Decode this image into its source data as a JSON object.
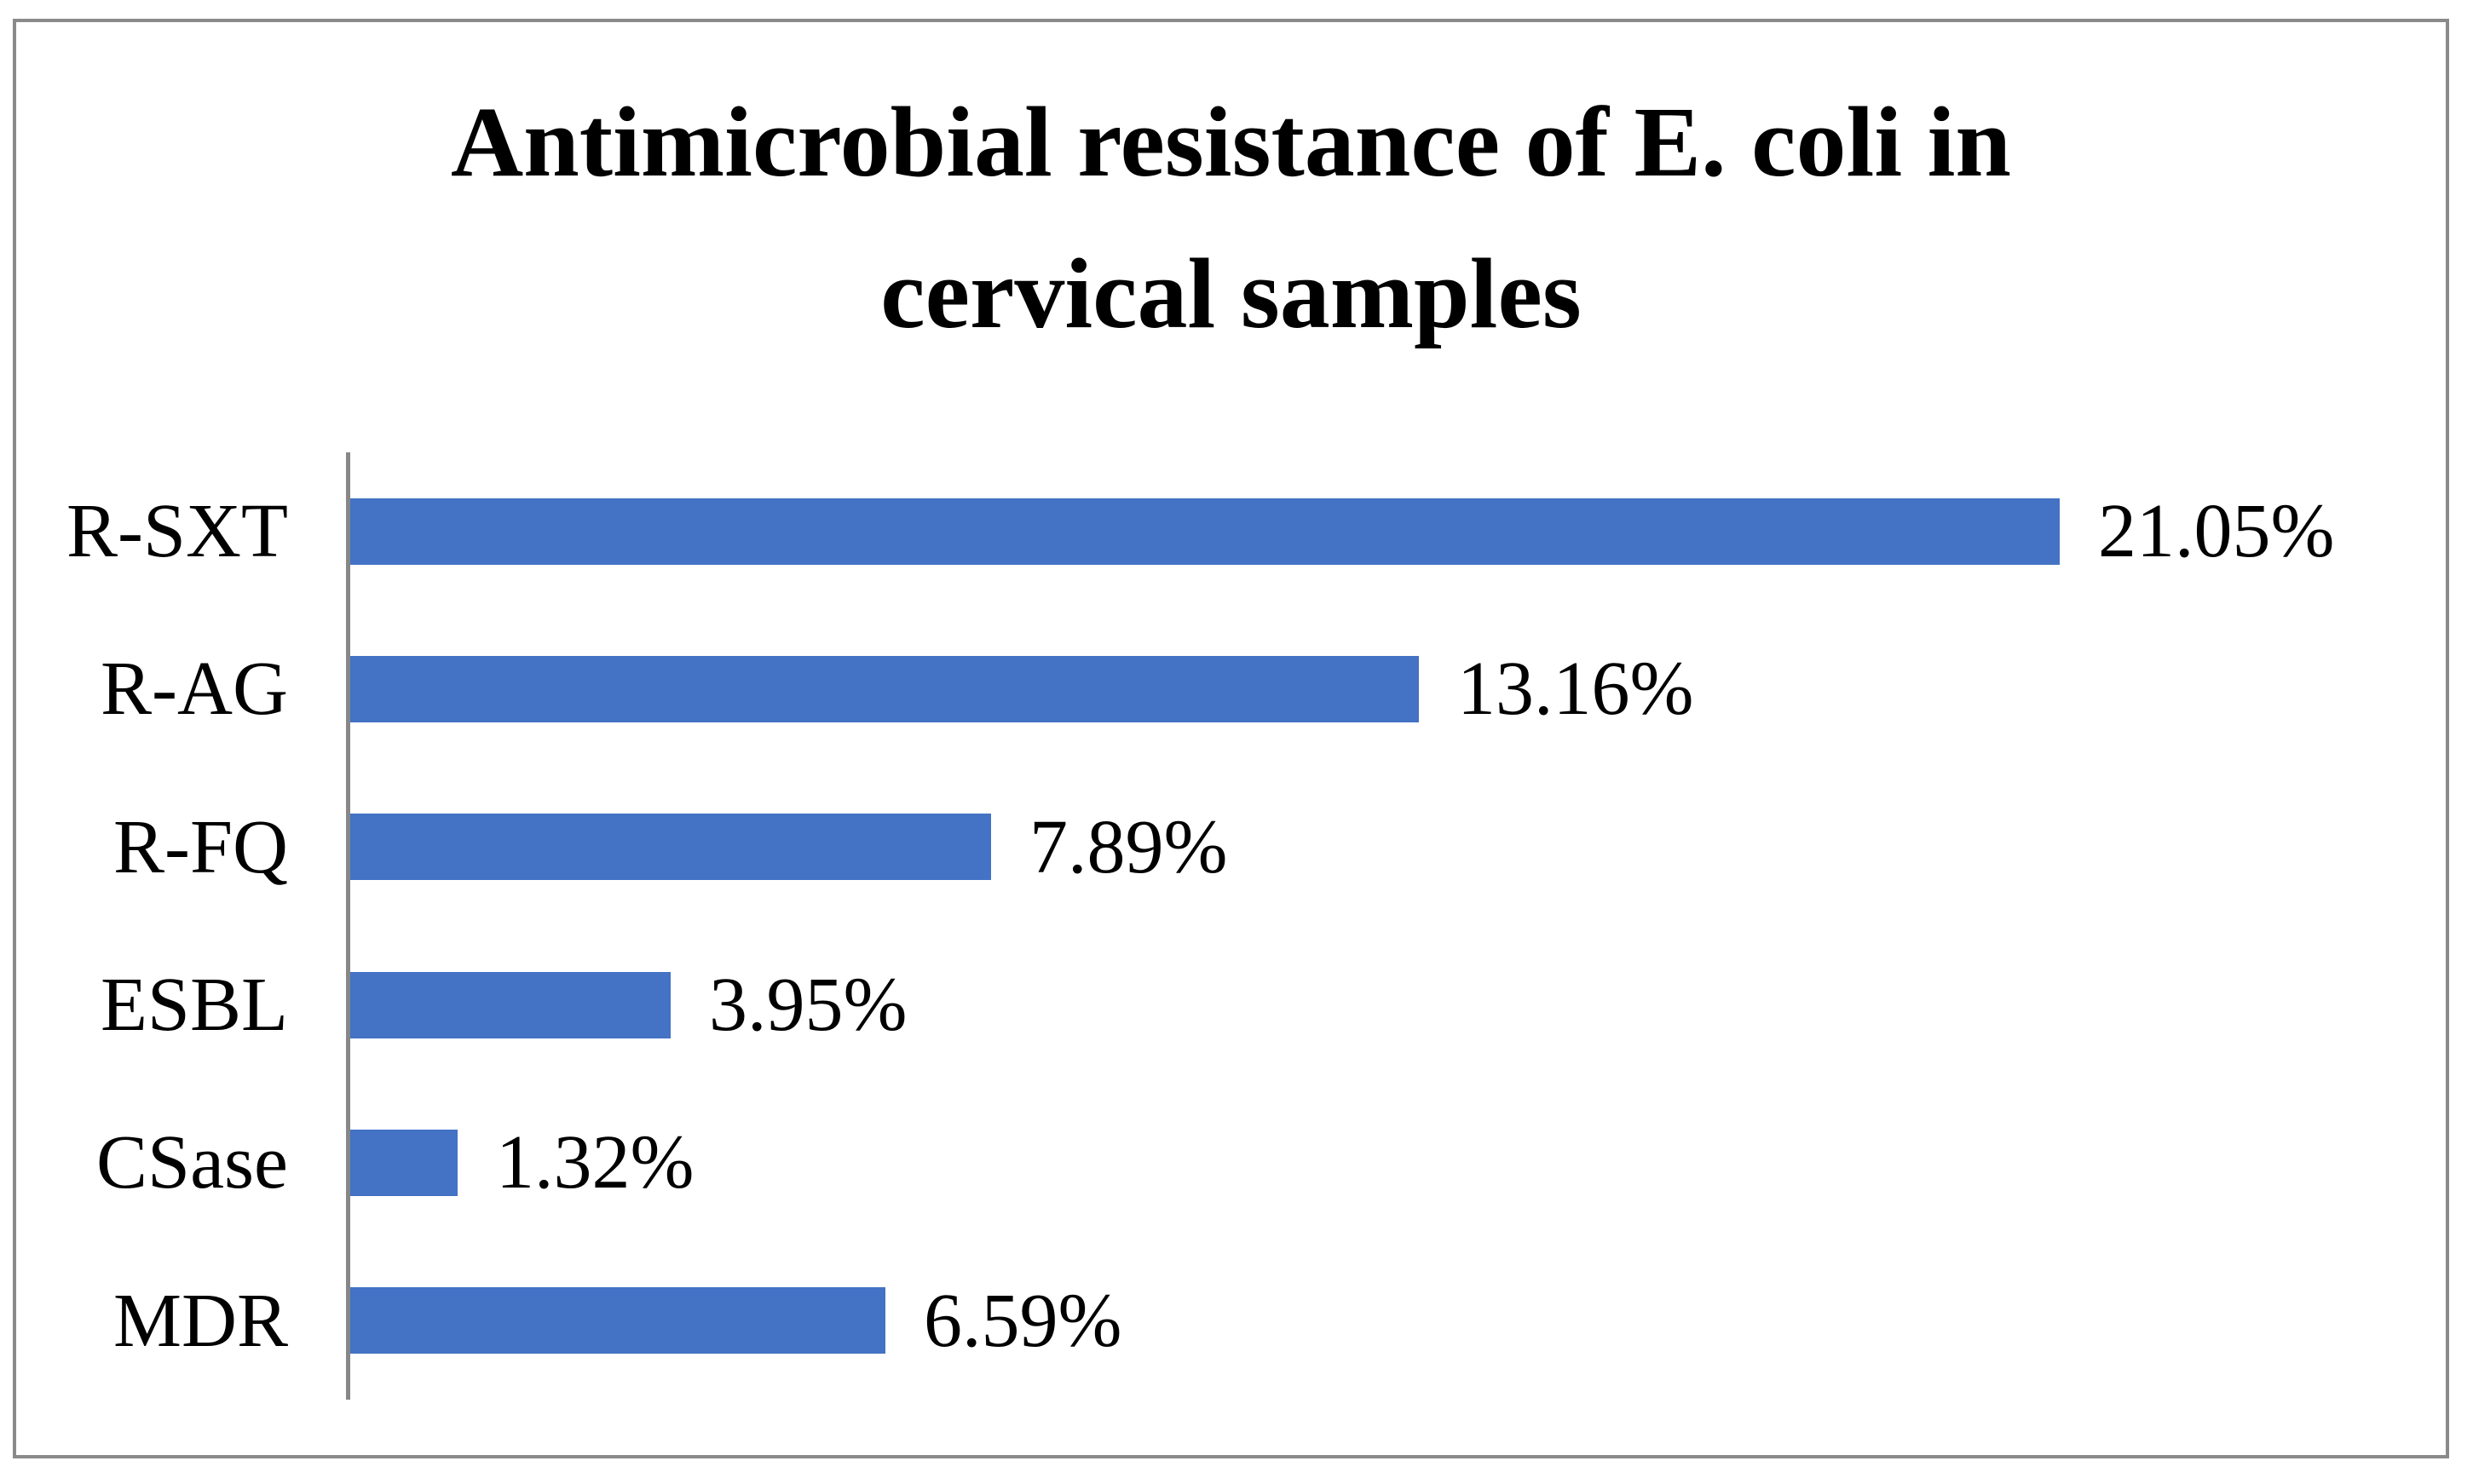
{
  "frame": {
    "border_color": "#8a8a8a",
    "background_color": "#ffffff"
  },
  "chart_data": {
    "type": "bar",
    "orientation": "horizontal",
    "title": "Antimicrobial resistance of E. coli in cervical samples",
    "title_lines": [
      "Antimicrobial resistance of E. coli in",
      "cervical samples"
    ],
    "categories": [
      "R-SXT",
      "R-AG",
      "R-FQ",
      "ESBL",
      "CSase",
      "MDR"
    ],
    "values": [
      21.05,
      13.16,
      7.89,
      3.95,
      1.32,
      6.59
    ],
    "value_labels": [
      "21.05%",
      "13.16%",
      "7.89%",
      "3.95%",
      "1.32%",
      "6.59%"
    ],
    "xlabel": "",
    "ylabel": "",
    "xlim": [
      0,
      25
    ],
    "grid": false,
    "legend": false,
    "bar_color": "#4472C4",
    "axis_color": "#878787",
    "data_label_position": "outside-end"
  }
}
